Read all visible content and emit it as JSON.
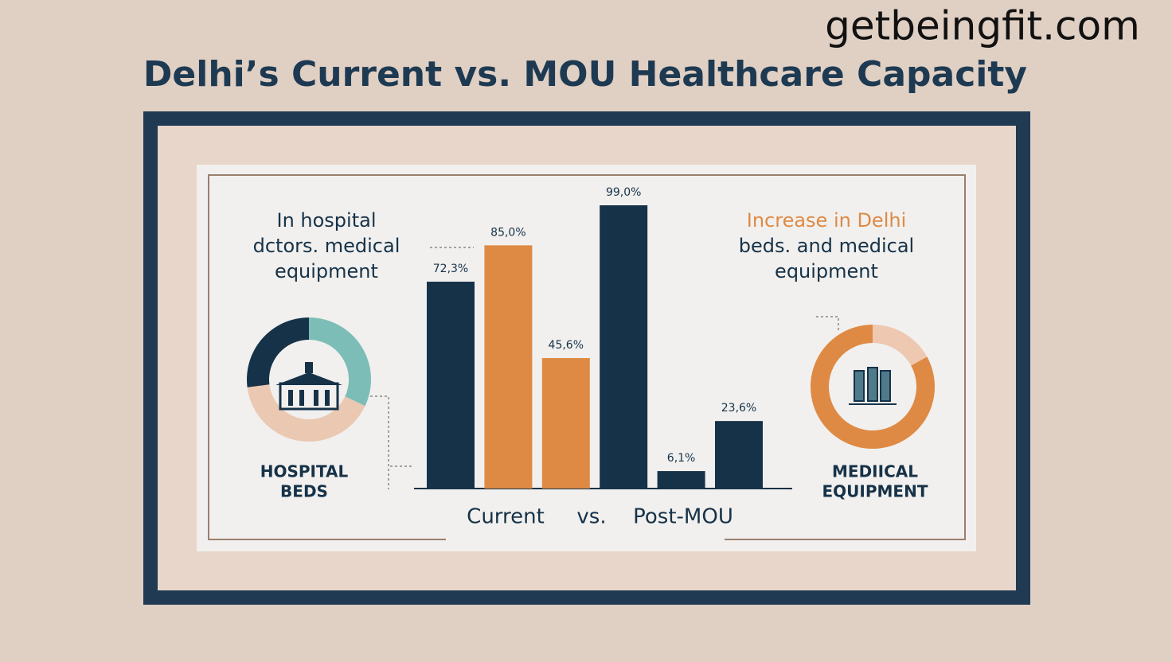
{
  "header": {
    "title": "Delhi’s Current vs. MOU Healthcare Capacity",
    "watermark": "getbeingfit.com"
  },
  "left_note": [
    "In hospital",
    "dctors. medical",
    "equipment"
  ],
  "right_note": [
    "Increase in Delhi",
    "beds. and medical",
    "equipment"
  ],
  "chart_data": [
    {
      "type": "bar",
      "categories": [
        null,
        null,
        null,
        null,
        null,
        null
      ],
      "values": [
        72.3,
        85.0,
        45.6,
        99.0,
        6.1,
        23.6
      ],
      "value_labels": [
        "72,3%",
        "85,0%",
        "45,6%",
        "99,0%",
        "6,1%",
        "23,6%"
      ],
      "colors": [
        "#163248",
        "#de8a44",
        "#de8a44",
        "#163248",
        "#163248",
        "#163248"
      ],
      "x_labels": [
        "Current",
        "vs.",
        "Post-MOU"
      ]
    },
    {
      "type": "pie",
      "title": [
        "HOSPITAL",
        "BEDS"
      ],
      "values": [
        32,
        41,
        27
      ],
      "colors": [
        "#7dbdb7",
        "#eac8b2",
        "#163248"
      ]
    },
    {
      "type": "pie",
      "title": [
        "MEDIICAL",
        "EQUIPMENT"
      ],
      "values": [
        17,
        83
      ],
      "colors": [
        "#efc8b1",
        "#de8a44"
      ]
    }
  ]
}
